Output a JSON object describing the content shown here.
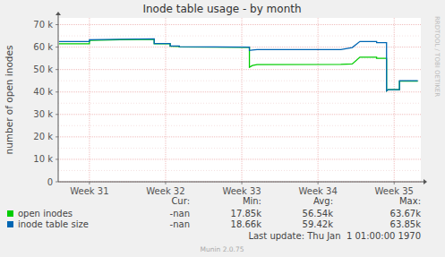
{
  "chart_data": {
    "type": "line",
    "title": "Inode table usage - by month",
    "y_label": "number of open inodes",
    "x": [
      30.6,
      31.0,
      31.0,
      31.4,
      31.85,
      31.85,
      32.06,
      32.06,
      32.18,
      32.18,
      33.1,
      33.1,
      33.14,
      33.2,
      34.3,
      34.45,
      34.55,
      34.77,
      34.77,
      34.9,
      34.9,
      34.92,
      35.07,
      35.07,
      35.31
    ],
    "series": [
      {
        "name": "open inodes",
        "color": "#00cc00",
        "values": [
          61500,
          61500,
          63000,
          63300,
          63500,
          61500,
          61500,
          60400,
          60300,
          60100,
          59900,
          51000,
          51800,
          52200,
          52300,
          52500,
          55500,
          55500,
          55000,
          55000,
          40500,
          41000,
          41000,
          44800,
          44800
        ],
        "cur": "-nan",
        "min": {
          "value": 17850,
          "label": "17.85k"
        },
        "avg": {
          "value": 56540,
          "label": "56.54k"
        },
        "max": {
          "value": 63670,
          "label": "63.67k"
        }
      },
      {
        "name": "inode table size",
        "color": "#0066b3",
        "values": [
          62500,
          62500,
          63300,
          63500,
          63700,
          61600,
          61600,
          60500,
          60500,
          60200,
          60000,
          58500,
          58700,
          58900,
          58900,
          59800,
          62500,
          62500,
          62000,
          62000,
          40500,
          41000,
          41000,
          45000,
          45000
        ],
        "cur": "-nan",
        "min": {
          "value": 18660,
          "label": "18.66k"
        },
        "avg": {
          "value": 59420,
          "label": "59.42k"
        },
        "max": {
          "value": 63850,
          "label": "63.85k"
        }
      }
    ],
    "xlim": [
      30.59,
      35.35
    ],
    "xticks": [
      {
        "value": 31,
        "label": "Week 31"
      },
      {
        "value": 32,
        "label": "Week 32"
      },
      {
        "value": 33,
        "label": "Week 33"
      },
      {
        "value": 34,
        "label": "Week 34"
      },
      {
        "value": 35,
        "label": "Week 35"
      }
    ],
    "ylim": [
      0,
      73000
    ],
    "yticks": [
      0,
      {
        "value": 10000,
        "label": "10 k"
      },
      {
        "value": 20000,
        "label": "20 k"
      },
      {
        "value": 30000,
        "label": "30 k"
      },
      {
        "value": 40000,
        "label": "40 k"
      },
      {
        "value": 50000,
        "label": "50 k"
      },
      {
        "value": 60000,
        "label": "60 k"
      },
      {
        "value": 70000,
        "label": "70 k"
      }
    ],
    "grid": true,
    "stat_headers": [
      "Cur:",
      "Min:",
      "Avg:",
      "Max:"
    ],
    "footer": "Last update: Thu Jan  1 01:00:00 1970",
    "credit": "Munin 2.0.75",
    "watermark": "RRDTOOL / TOBI OETIKER"
  }
}
